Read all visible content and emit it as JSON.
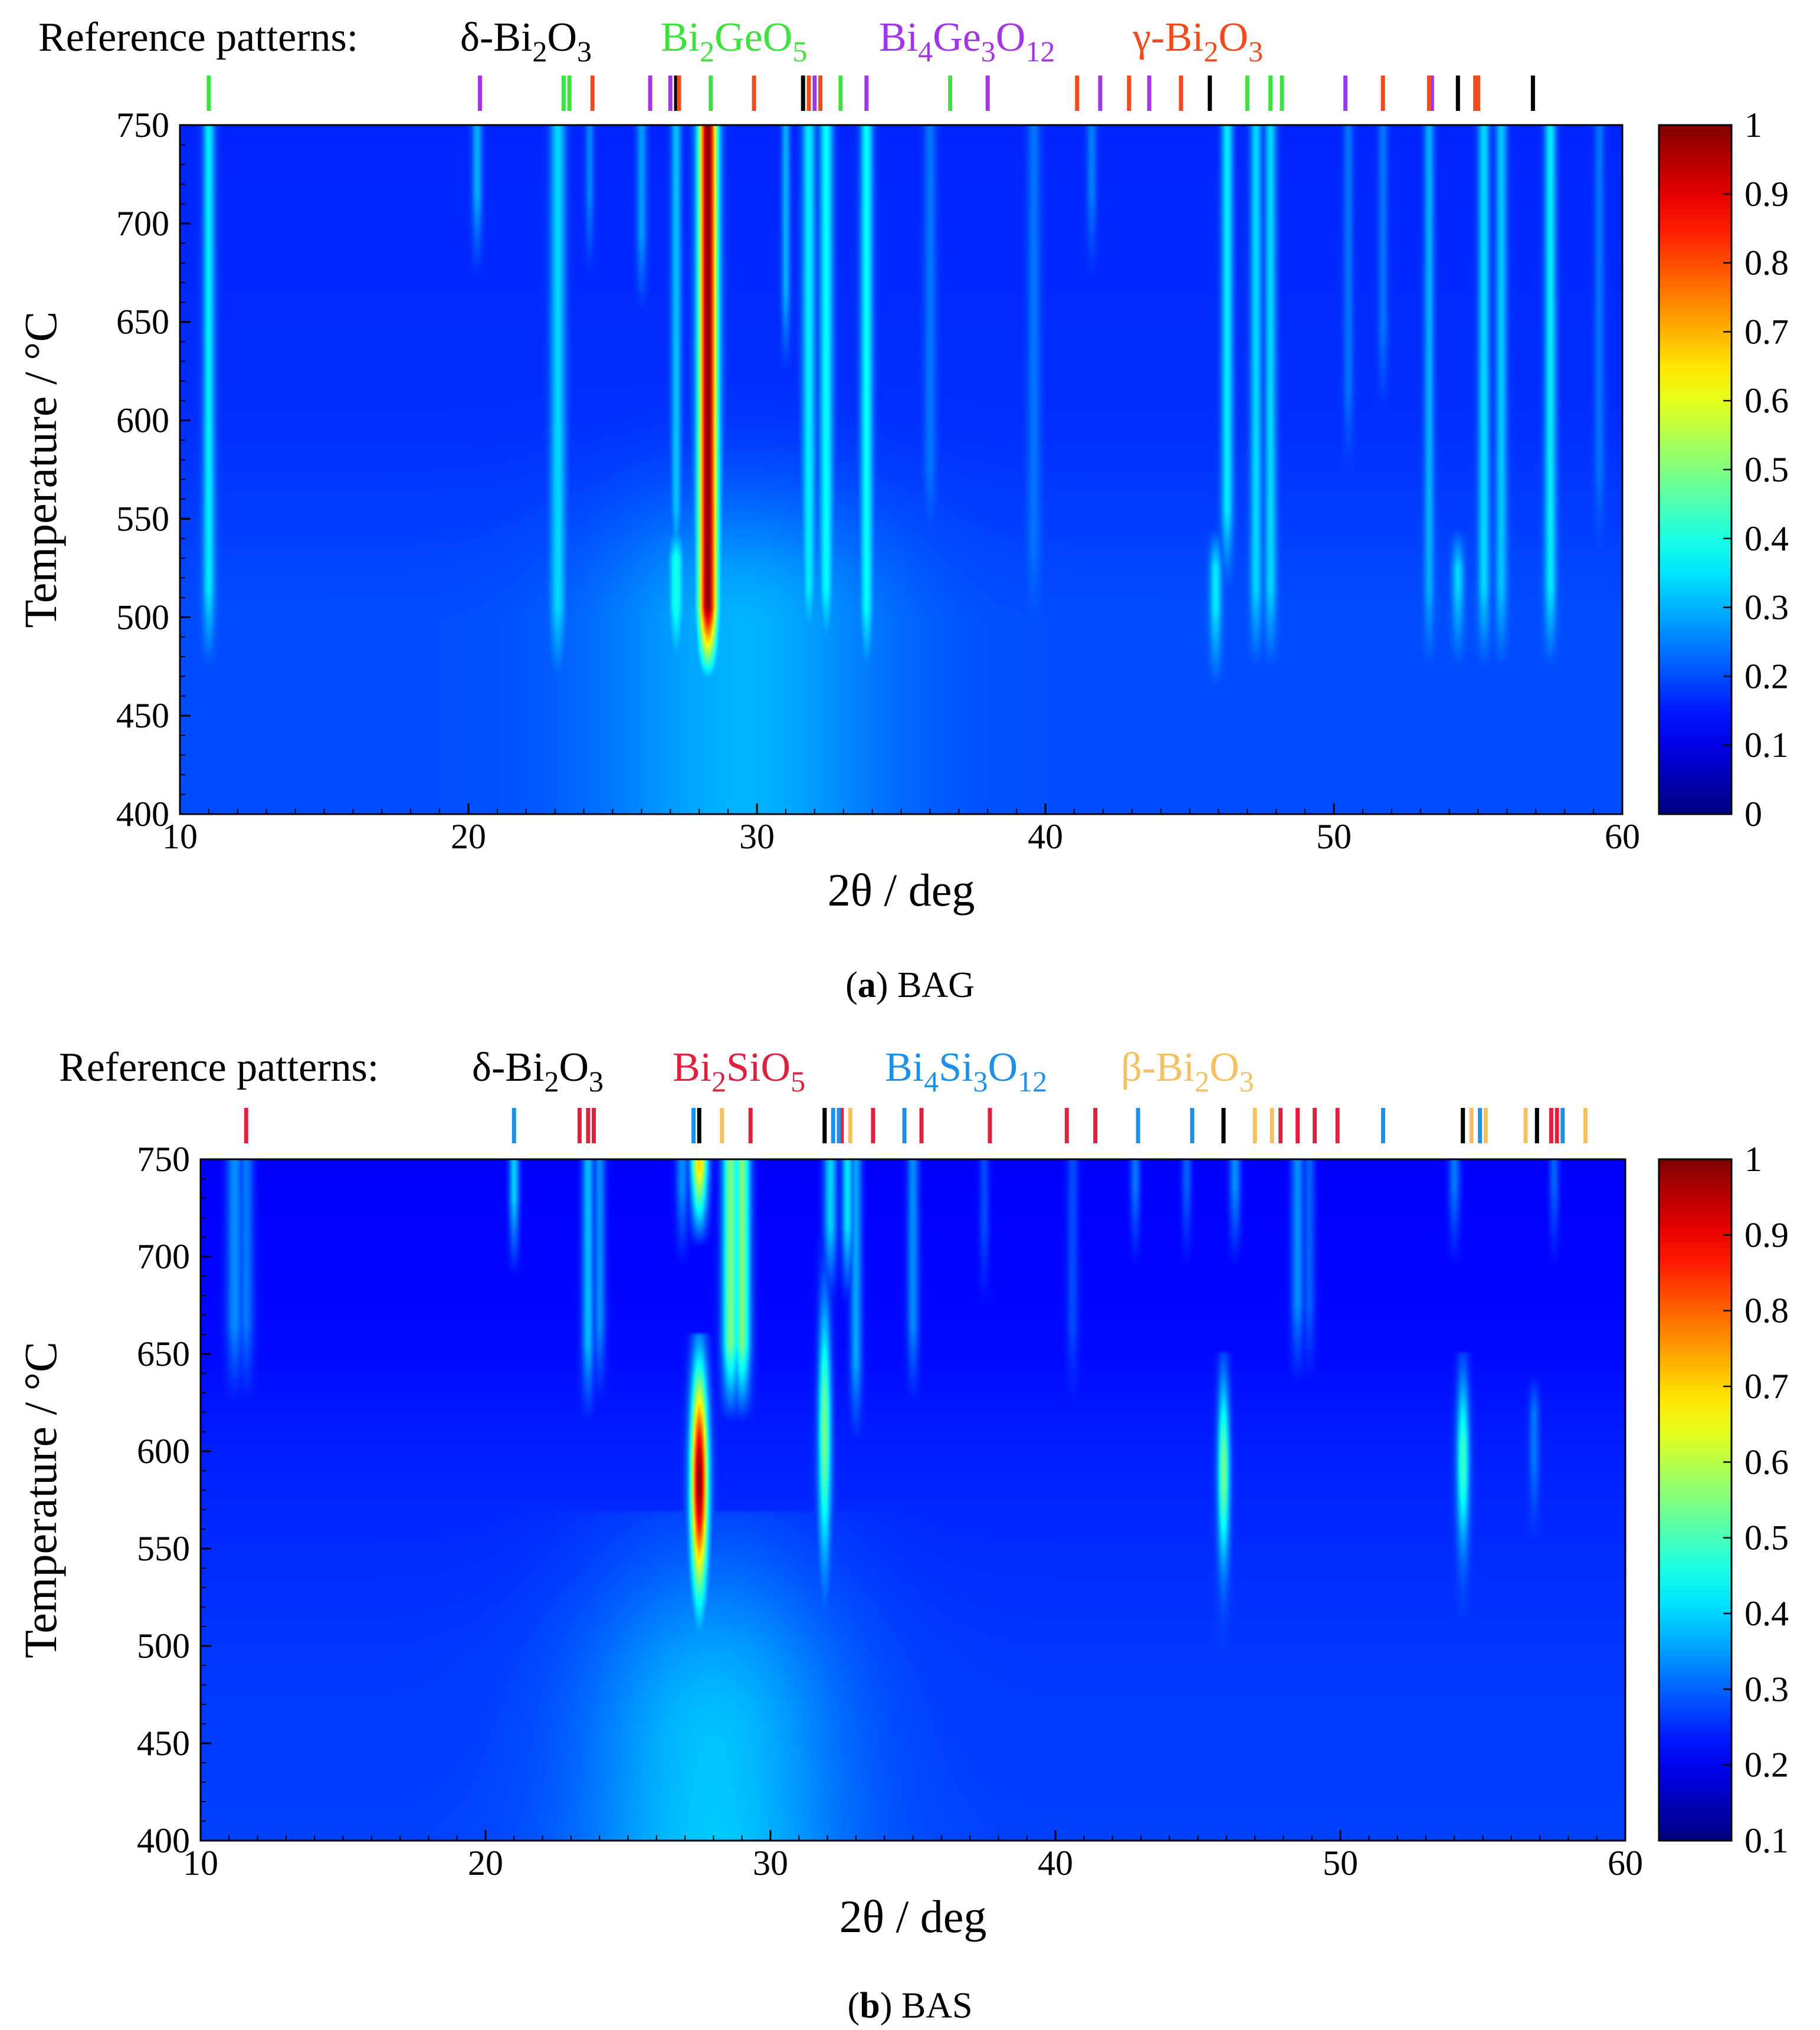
{
  "chart_data": [
    {
      "type": "heatmap",
      "panel": "a",
      "caption_letter": "a",
      "caption_text": "BAG",
      "reference_label": "Reference patterns:",
      "phases": [
        {
          "name": "δ-Bi2O3",
          "parts": [
            [
              "δ-Bi",
              ""
            ],
            [
              "2",
              "sub"
            ],
            [
              "O",
              ""
            ],
            [
              "3",
              "sub"
            ]
          ],
          "color": "#000000",
          "positions": [
            27.2,
            31.6,
            45.7,
            54.3,
            56.9
          ]
        },
        {
          "name": "Bi2GeO5",
          "parts": [
            [
              "Bi",
              ""
            ],
            [
              "2",
              "sub"
            ],
            [
              "GeO",
              ""
            ],
            [
              "5",
              "sub"
            ]
          ],
          "color": "#3ee23e",
          "positions": [
            11.0,
            23.3,
            23.5,
            28.4,
            31.8,
            32.9,
            36.7,
            47.0,
            47.8,
            48.2
          ]
        },
        {
          "name": "Bi4Ge3O12",
          "parts": [
            [
              "Bi",
              ""
            ],
            [
              "4",
              "sub"
            ],
            [
              "Ge",
              ""
            ],
            [
              "3",
              "sub"
            ],
            [
              "O",
              ""
            ],
            [
              "12",
              "sub"
            ]
          ],
          "color": "#a335e8",
          "positions": [
            20.4,
            26.3,
            27.0,
            32.0,
            33.8,
            38.0,
            41.9,
            43.6,
            50.4,
            53.4
          ]
        },
        {
          "name": "γ-Bi2O3",
          "parts": [
            [
              "γ-Bi",
              ""
            ],
            [
              "2",
              "sub"
            ],
            [
              "O",
              ""
            ],
            [
              "3",
              "sub"
            ]
          ],
          "color": "#f04b1e",
          "positions": [
            24.3,
            27.3,
            29.9,
            31.8,
            32.2,
            41.1,
            42.9,
            44.7,
            51.7,
            53.3,
            54.9,
            55.0
          ]
        }
      ],
      "xlabel": "2θ / deg",
      "ylabel": "Temperature / °C",
      "xlim": [
        10,
        60
      ],
      "ylim": [
        400,
        750
      ],
      "x_ticks": [
        "10",
        "20",
        "30",
        "40",
        "50",
        "60"
      ],
      "y_ticks": [
        "400",
        "450",
        "500",
        "550",
        "600",
        "650",
        "700",
        "750"
      ],
      "colorbar_range": [
        0,
        1
      ],
      "colorbar_ticks": [
        "0",
        "0.1",
        "0.2",
        "0.3",
        "0.4",
        "0.5",
        "0.6",
        "0.7",
        "0.8",
        "0.9",
        "1"
      ],
      "background": [
        {
          "t": 400,
          "v": 0.2
        },
        {
          "t": 500,
          "v": 0.2
        },
        {
          "t": 600,
          "v": 0.17
        },
        {
          "t": 750,
          "v": 0.16
        }
      ],
      "peaks": [
        {
          "x": 28.3,
          "t_start": 490,
          "v": 1.0,
          "w": 0.22
        },
        {
          "x": 27.2,
          "t_start": 490,
          "t_end": 540,
          "v": 0.4,
          "w": 0.18
        },
        {
          "x": 27.2,
          "t_start": 540,
          "v": 0.32,
          "w": 0.12
        },
        {
          "x": 11.0,
          "t_start": 500,
          "v": 0.36,
          "w": 0.14
        },
        {
          "x": 20.3,
          "t_start": 700,
          "v": 0.3,
          "w": 0.12
        },
        {
          "x": 23.1,
          "t_start": 490,
          "v": 0.34,
          "w": 0.18
        },
        {
          "x": 24.2,
          "t_start": 700,
          "v": 0.26,
          "w": 0.1
        },
        {
          "x": 26.0,
          "t_start": 680,
          "v": 0.28,
          "w": 0.12
        },
        {
          "x": 31.0,
          "t_start": 650,
          "v": 0.3,
          "w": 0.1
        },
        {
          "x": 31.8,
          "t_start": 500,
          "v": 0.36,
          "w": 0.16
        },
        {
          "x": 32.4,
          "t_start": 500,
          "v": 0.38,
          "w": 0.16
        },
        {
          "x": 33.8,
          "t_start": 490,
          "v": 0.38,
          "w": 0.15
        },
        {
          "x": 36.0,
          "t_start": 560,
          "v": 0.24,
          "w": 0.15
        },
        {
          "x": 39.6,
          "t_start": 520,
          "v": 0.24,
          "w": 0.16
        },
        {
          "x": 41.6,
          "t_start": 700,
          "v": 0.25,
          "w": 0.12
        },
        {
          "x": 45.9,
          "t_start": 490,
          "t_end": 535,
          "v": 0.36,
          "w": 0.14
        },
        {
          "x": 46.3,
          "t_start": 540,
          "v": 0.36,
          "w": 0.14
        },
        {
          "x": 47.3,
          "t_start": 500,
          "v": 0.34,
          "w": 0.14
        },
        {
          "x": 47.8,
          "t_start": 500,
          "v": 0.34,
          "w": 0.14
        },
        {
          "x": 50.5,
          "t_start": 600,
          "v": 0.24,
          "w": 0.12
        },
        {
          "x": 51.7,
          "t_start": 630,
          "v": 0.24,
          "w": 0.12
        },
        {
          "x": 53.3,
          "t_start": 500,
          "v": 0.3,
          "w": 0.12
        },
        {
          "x": 54.3,
          "t_start": 500,
          "t_end": 535,
          "v": 0.34,
          "w": 0.14
        },
        {
          "x": 55.2,
          "t_start": 500,
          "v": 0.34,
          "w": 0.14
        },
        {
          "x": 55.8,
          "t_start": 500,
          "v": 0.32,
          "w": 0.14
        },
        {
          "x": 57.5,
          "t_start": 500,
          "v": 0.36,
          "w": 0.14
        },
        {
          "x": 59.2,
          "t_start": 560,
          "v": 0.24,
          "w": 0.12
        }
      ],
      "hump": {
        "x": 29.5,
        "sigma_x": 3.5,
        "t_max": 500,
        "sigma_t": 45,
        "v": 0.1
      }
    },
    {
      "type": "heatmap",
      "panel": "b",
      "caption_letter": "b",
      "caption_text": "BAS",
      "reference_label": "Reference patterns:",
      "phases": [
        {
          "name": "δ-Bi2O3",
          "parts": [
            [
              "δ-Bi",
              ""
            ],
            [
              "2",
              "sub"
            ],
            [
              "O",
              ""
            ],
            [
              "3",
              "sub"
            ]
          ],
          "color": "#000000",
          "positions": [
            27.5,
            31.9,
            45.9,
            54.3,
            56.9
          ]
        },
        {
          "name": "Bi2SiO5",
          "parts": [
            [
              "Bi",
              ""
            ],
            [
              "2",
              "sub"
            ],
            [
              "SiO",
              ""
            ],
            [
              "5",
              "sub"
            ]
          ],
          "color": "#e0203f",
          "positions": [
            11.6,
            23.3,
            23.6,
            23.8,
            29.3,
            32.5,
            33.6,
            35.3,
            37.7,
            40.4,
            41.4,
            47.9,
            48.5,
            49.1,
            49.9,
            57.4,
            57.6
          ]
        },
        {
          "name": "Bi4Si3O12",
          "parts": [
            [
              "Bi",
              ""
            ],
            [
              "4",
              "sub"
            ],
            [
              "Si",
              ""
            ],
            [
              "3",
              "sub"
            ],
            [
              "O",
              ""
            ],
            [
              "12",
              "sub"
            ]
          ],
          "color": "#1e90e8",
          "positions": [
            21.0,
            27.3,
            32.2,
            32.4,
            34.7,
            42.9,
            44.8,
            51.5,
            54.9,
            57.8
          ]
        },
        {
          "name": "β-Bi2O3",
          "parts": [
            [
              "β-Bi",
              ""
            ],
            [
              "2",
              "sub"
            ],
            [
              "O",
              ""
            ],
            [
              "3",
              "sub"
            ]
          ],
          "color": "#f5c060",
          "positions": [
            28.3,
            32.8,
            47.0,
            47.6,
            54.6,
            55.1,
            56.5,
            58.6
          ]
        }
      ],
      "xlabel": "2θ / deg",
      "ylabel": "Temperature / °C",
      "xlim": [
        10,
        60
      ],
      "ylim": [
        400,
        750
      ],
      "x_ticks": [
        "10",
        "20",
        "30",
        "40",
        "50",
        "60"
      ],
      "y_ticks": [
        "400",
        "450",
        "500",
        "550",
        "600",
        "650",
        "700",
        "750"
      ],
      "colorbar_range": [
        0.1,
        1
      ],
      "colorbar_ticks": [
        "0.1",
        "0.2",
        "0.3",
        "0.4",
        "0.5",
        "0.6",
        "0.7",
        "0.8",
        "0.9",
        "1"
      ],
      "background": [
        {
          "t": 400,
          "v": 0.27
        },
        {
          "t": 500,
          "v": 0.26
        },
        {
          "t": 600,
          "v": 0.24
        },
        {
          "t": 650,
          "v": 0.22
        },
        {
          "t": 750,
          "v": 0.21
        }
      ],
      "peaks": [
        {
          "x": 27.5,
          "t_start": 520,
          "t_end": 650,
          "v": 1.0,
          "w": 0.2,
          "profile": "bell",
          "t_peak": 585,
          "t_sigma": 38
        },
        {
          "x": 27.5,
          "t_start": 730,
          "v": 0.7,
          "w": 0.2
        },
        {
          "x": 28.6,
          "t_start": 640,
          "v": 0.55,
          "w": 0.2
        },
        {
          "x": 29.0,
          "t_start": 640,
          "v": 0.55,
          "w": 0.2
        },
        {
          "x": 11.2,
          "t_start": 650,
          "v": 0.34,
          "w": 0.2
        },
        {
          "x": 11.6,
          "t_start": 650,
          "v": 0.32,
          "w": 0.18
        },
        {
          "x": 21.0,
          "t_start": 715,
          "v": 0.4,
          "w": 0.12
        },
        {
          "x": 23.6,
          "t_start": 640,
          "v": 0.38,
          "w": 0.15
        },
        {
          "x": 24.0,
          "t_start": 650,
          "v": 0.34,
          "w": 0.14
        },
        {
          "x": 26.9,
          "t_start": 720,
          "v": 0.34,
          "w": 0.15
        },
        {
          "x": 31.9,
          "t_start": 530,
          "t_end": 700,
          "v": 0.55,
          "w": 0.15,
          "profile": "bell",
          "t_peak": 610,
          "t_sigma": 45
        },
        {
          "x": 32.1,
          "t_start": 700,
          "v": 0.4,
          "w": 0.16
        },
        {
          "x": 32.7,
          "t_start": 700,
          "v": 0.42,
          "w": 0.14
        },
        {
          "x": 33.0,
          "t_start": 630,
          "v": 0.36,
          "w": 0.14
        },
        {
          "x": 35.0,
          "t_start": 650,
          "v": 0.34,
          "w": 0.14
        },
        {
          "x": 37.5,
          "t_start": 700,
          "v": 0.28,
          "w": 0.12
        },
        {
          "x": 40.6,
          "t_start": 650,
          "v": 0.28,
          "w": 0.14
        },
        {
          "x": 42.8,
          "t_start": 720,
          "v": 0.32,
          "w": 0.12
        },
        {
          "x": 44.6,
          "t_start": 720,
          "v": 0.3,
          "w": 0.12
        },
        {
          "x": 45.9,
          "t_start": 525,
          "t_end": 640,
          "v": 0.55,
          "w": 0.14,
          "profile": "bell",
          "t_peak": 590,
          "t_sigma": 32
        },
        {
          "x": 46.3,
          "t_start": 720,
          "v": 0.34,
          "w": 0.14
        },
        {
          "x": 48.5,
          "t_start": 660,
          "v": 0.34,
          "w": 0.16
        },
        {
          "x": 48.9,
          "t_start": 660,
          "v": 0.3,
          "w": 0.14
        },
        {
          "x": 54.3,
          "t_start": 540,
          "t_end": 640,
          "v": 0.5,
          "w": 0.15,
          "profile": "bell",
          "t_peak": 595,
          "t_sigma": 30
        },
        {
          "x": 54.0,
          "t_start": 720,
          "v": 0.32,
          "w": 0.14
        },
        {
          "x": 56.8,
          "t_start": 580,
          "t_end": 630,
          "v": 0.32,
          "w": 0.12
        },
        {
          "x": 57.5,
          "t_start": 720,
          "v": 0.3,
          "w": 0.12
        }
      ],
      "hump": {
        "x": 28.0,
        "sigma_x": 3.2,
        "t_max": 450,
        "sigma_t": 70,
        "v": 0.12
      }
    }
  ]
}
